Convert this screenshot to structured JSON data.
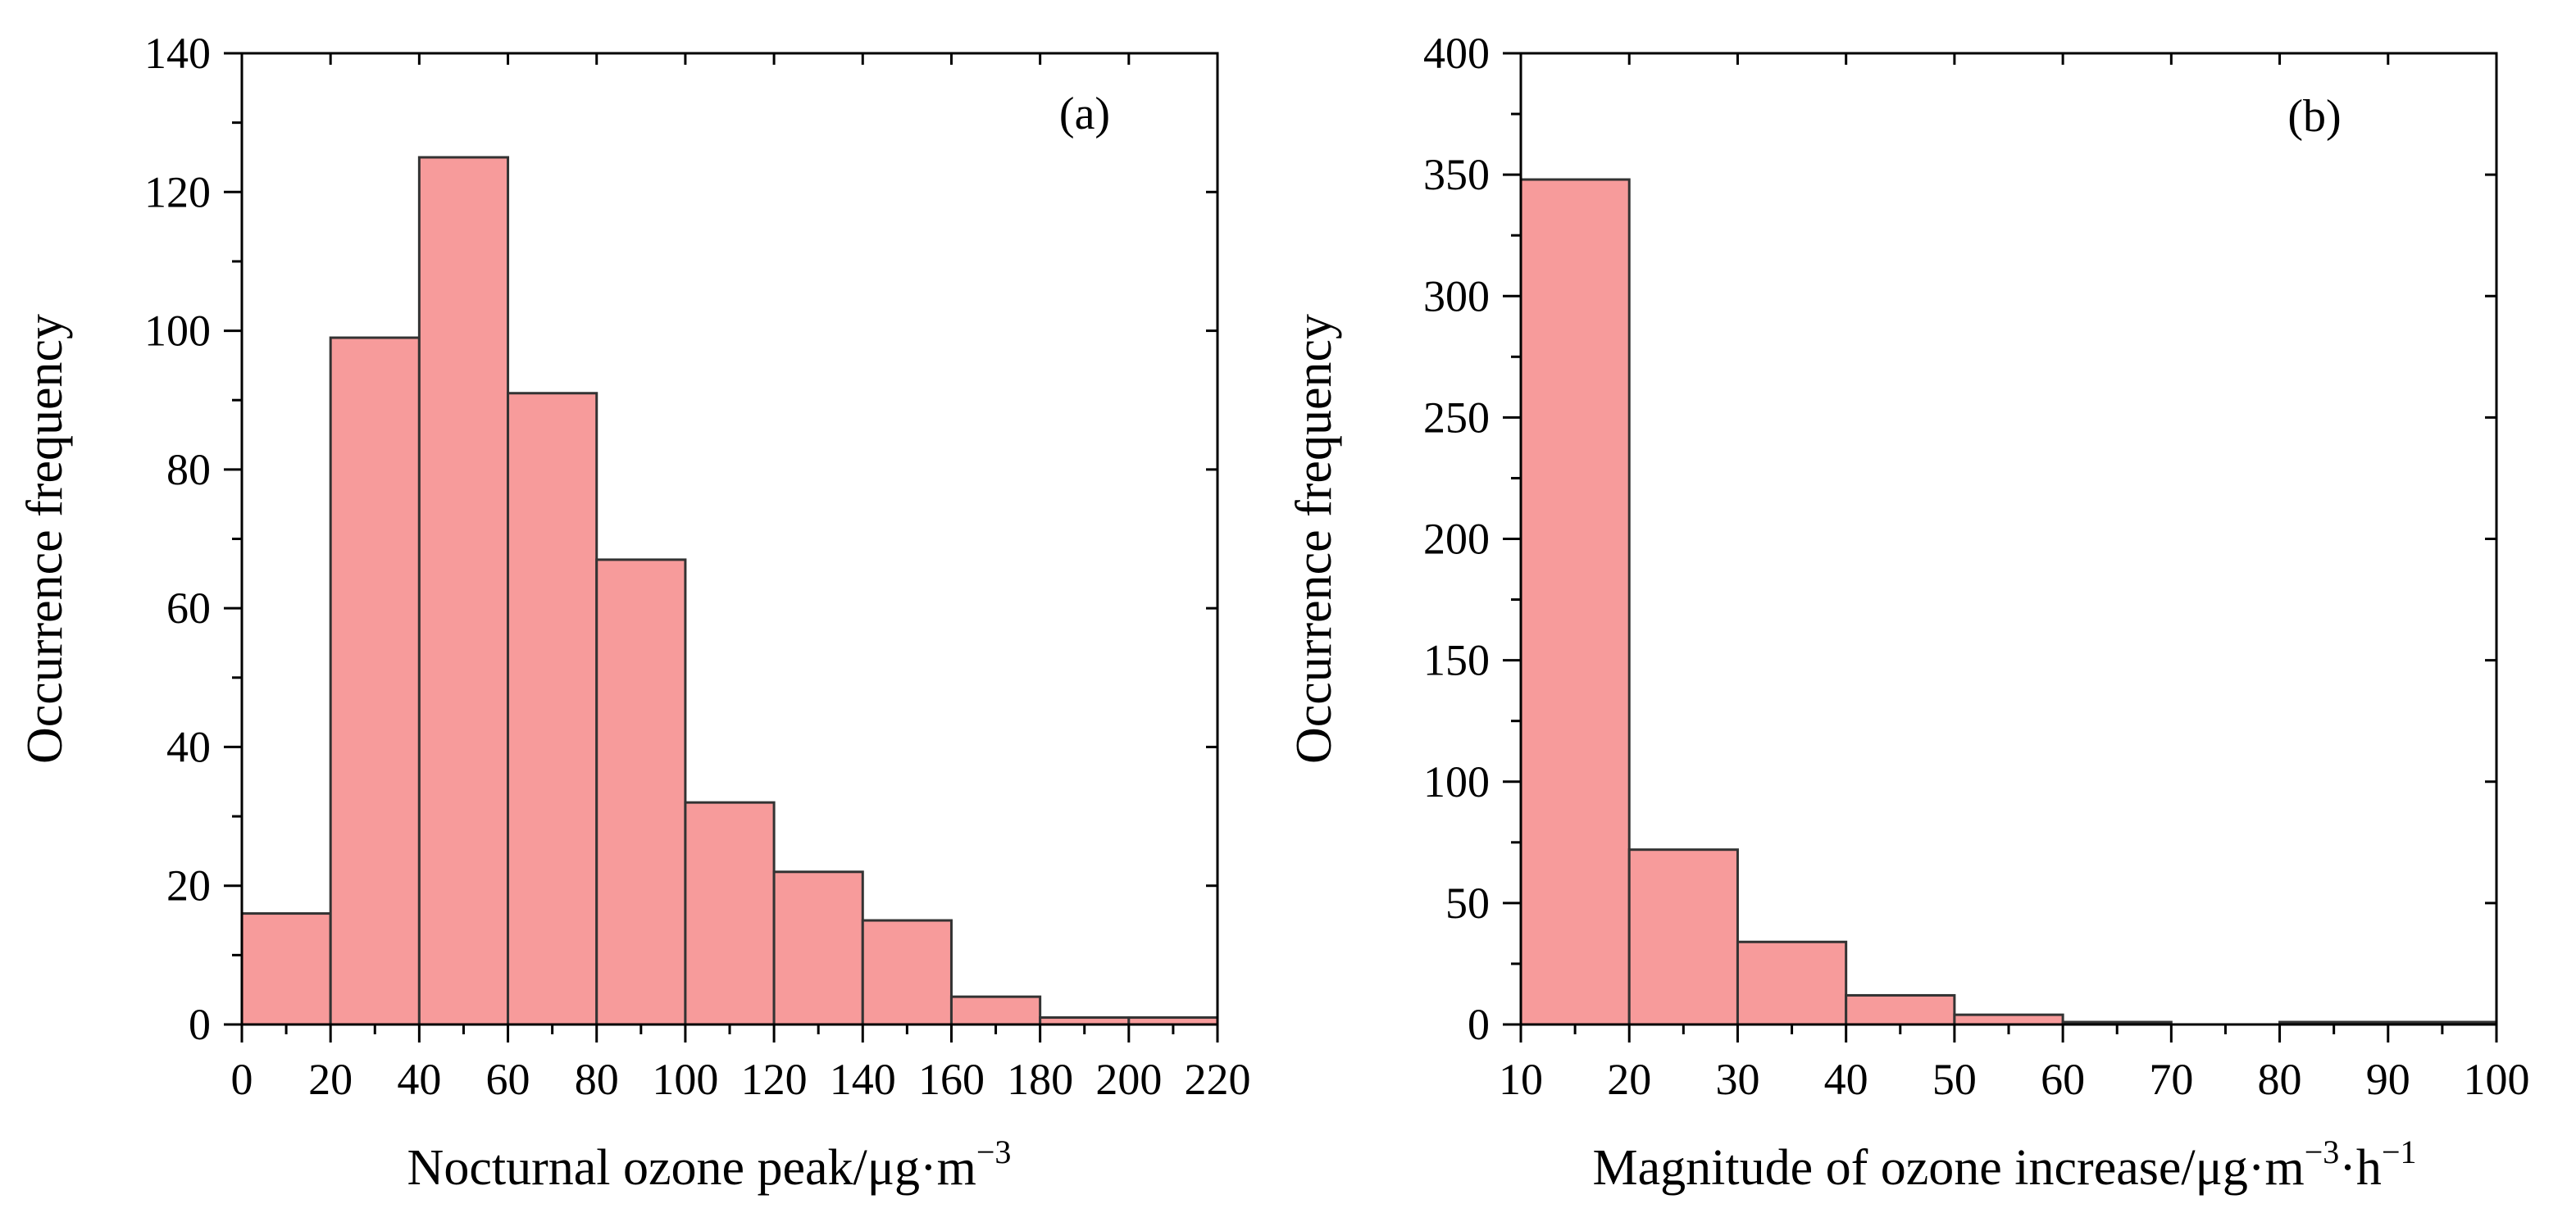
{
  "chart_data": [
    {
      "type": "bar",
      "panel_label": "(a)",
      "xlabel": "Nocturnal ozone peak/μg·m",
      "xlabel_sup": "−3",
      "ylabel": "Occurrence frequency",
      "bin_edges": [
        0,
        20,
        40,
        60,
        80,
        100,
        120,
        140,
        160,
        180,
        200,
        220
      ],
      "values": [
        16,
        99,
        125,
        91,
        67,
        32,
        22,
        15,
        4,
        1,
        1
      ],
      "xlim": [
        0,
        220
      ],
      "ylim": [
        0,
        140
      ],
      "x_ticks": [
        0,
        20,
        40,
        60,
        80,
        100,
        120,
        140,
        160,
        180,
        200,
        220
      ],
      "x_minor_step": 10,
      "y_ticks": [
        0,
        20,
        40,
        60,
        80,
        100,
        120,
        140
      ],
      "y_minor_step": 10,
      "bar_color": "#F79B9B",
      "edge_color": "#333333",
      "grid": false
    },
    {
      "type": "bar",
      "panel_label": "(b)",
      "xlabel": "Magnitude of ozone increase/μg·m",
      "xlabel_sup": "−3",
      "xlabel_mid": "·h",
      "xlabel_sup2": "−1",
      "ylabel": "Occurrence frequency",
      "bin_edges": [
        10,
        20,
        30,
        40,
        50,
        60,
        70,
        80,
        90,
        100
      ],
      "values": [
        348,
        72,
        34,
        12,
        4,
        1,
        0,
        1,
        1
      ],
      "xlim": [
        10,
        100
      ],
      "ylim": [
        0,
        400
      ],
      "x_ticks": [
        10,
        20,
        30,
        40,
        50,
        60,
        70,
        80,
        90,
        100
      ],
      "x_minor_step": 5,
      "y_ticks": [
        0,
        50,
        100,
        150,
        200,
        250,
        300,
        350,
        400
      ],
      "y_minor_step": 25,
      "bar_color": "#F79B9B",
      "edge_color": "#333333",
      "grid": false
    }
  ]
}
